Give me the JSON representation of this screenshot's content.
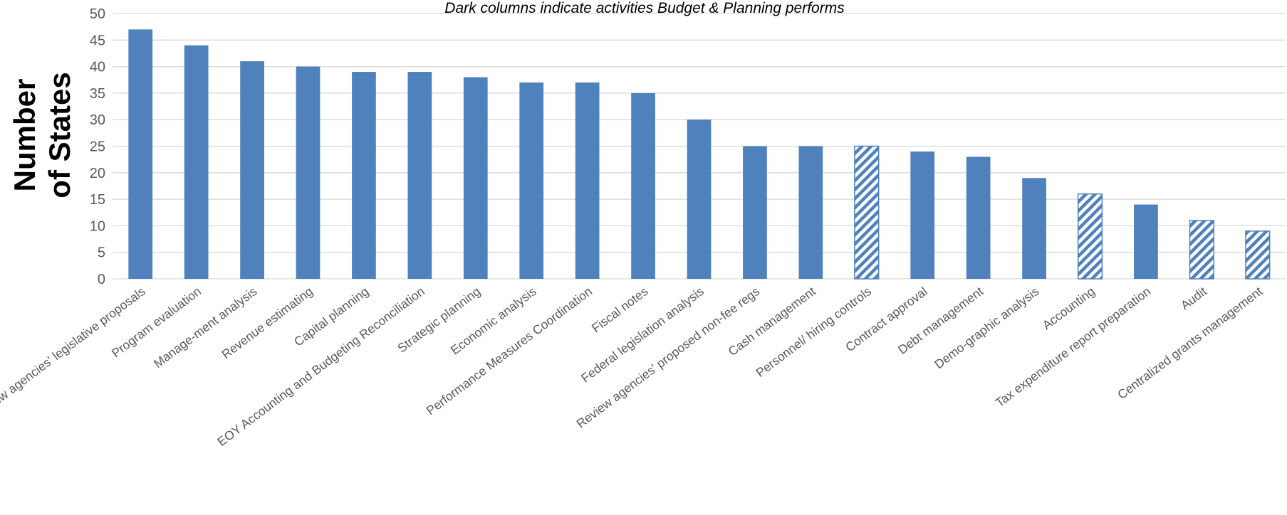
{
  "chart_data": {
    "type": "bar",
    "subtitle": "Dark columns indicate activities Budget & Planning performs",
    "ylabel_lines": [
      "Number",
      "of States"
    ],
    "xlabel": "",
    "ylim": [
      0,
      50
    ],
    "yticks": [
      "0",
      "5",
      "10",
      "15",
      "20",
      "25",
      "30",
      "35",
      "40",
      "45",
      "50"
    ],
    "grid": true,
    "categories": [
      "Review agencies' legislative proposals",
      "Program evaluation",
      "Manage-ment analysis",
      "Revenue estimating",
      "Capital planning",
      "EOY Accounting and Budgeting Reconciliation",
      "Strategic planning",
      "Economic analysis",
      "Performance Measures Coordination",
      "Fiscal notes",
      "Federal legislation analysis",
      "Review agencies' proposed non-fee regs",
      "Cash management",
      "Personnel/ hiring controls",
      "Contract approval",
      "Debt management",
      "Demo-graphic analysis",
      "Accounting",
      "Tax expenditure report preparation",
      "Audit",
      "Centralized grants management"
    ],
    "values": [
      47,
      44,
      41,
      40,
      39,
      39,
      38,
      37,
      37,
      35,
      30,
      25,
      25,
      25,
      24,
      23,
      19,
      16,
      14,
      11,
      9
    ],
    "performed": [
      true,
      true,
      true,
      true,
      true,
      true,
      true,
      true,
      true,
      true,
      true,
      true,
      true,
      false,
      true,
      true,
      true,
      false,
      true,
      false,
      false
    ],
    "colors": {
      "bar": "#4f81bd",
      "grid": "#d9d9d9",
      "axis": "#d9d9d9",
      "tick_text": "#595959"
    }
  }
}
